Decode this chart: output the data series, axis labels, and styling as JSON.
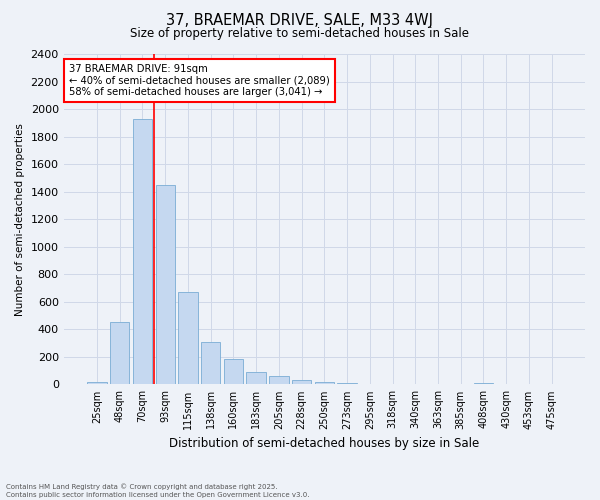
{
  "title": "37, BRAEMAR DRIVE, SALE, M33 4WJ",
  "subtitle": "Size of property relative to semi-detached houses in Sale",
  "xlabel": "Distribution of semi-detached houses by size in Sale",
  "ylabel": "Number of semi-detached properties",
  "categories": [
    "25sqm",
    "48sqm",
    "70sqm",
    "93sqm",
    "115sqm",
    "138sqm",
    "160sqm",
    "183sqm",
    "205sqm",
    "228sqm",
    "250sqm",
    "273sqm",
    "295sqm",
    "318sqm",
    "340sqm",
    "363sqm",
    "385sqm",
    "408sqm",
    "430sqm",
    "453sqm",
    "475sqm"
  ],
  "values": [
    20,
    450,
    1930,
    1450,
    670,
    310,
    185,
    90,
    60,
    35,
    20,
    12,
    5,
    5,
    0,
    0,
    0,
    8,
    0,
    0,
    0
  ],
  "bar_color": "#c5d8f0",
  "bar_edge_color": "#7aadd4",
  "grid_color": "#d0d8e8",
  "annotation_text": "37 BRAEMAR DRIVE: 91sqm\n← 40% of semi-detached houses are smaller (2,089)\n58% of semi-detached houses are larger (3,041) →",
  "footer_line1": "Contains HM Land Registry data © Crown copyright and database right 2025.",
  "footer_line2": "Contains public sector information licensed under the Open Government Licence v3.0.",
  "ylim": [
    0,
    2400
  ],
  "yticks": [
    0,
    200,
    400,
    600,
    800,
    1000,
    1200,
    1400,
    1600,
    1800,
    2000,
    2200,
    2400
  ],
  "background_color": "#eef2f8",
  "red_line_x": 2.5
}
